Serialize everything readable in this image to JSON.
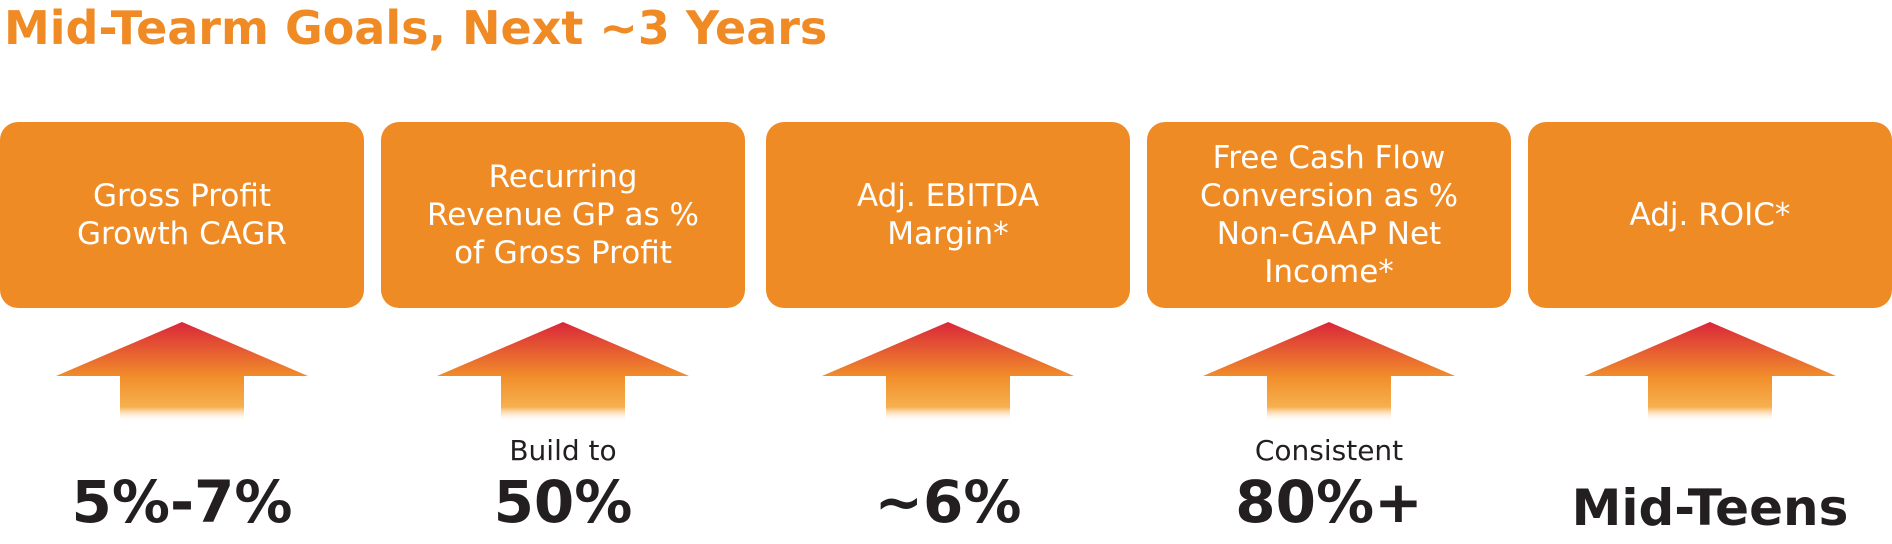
{
  "title": "Mid-Tearm Goals, Next ~3 Years",
  "colors": {
    "accent_orange": "#ef8b25",
    "arrow_top": "#d9263a",
    "arrow_bottom": "#f18e2a",
    "text_dark": "#231f20"
  },
  "goals": [
    {
      "label": "Gross Profit\nGrowth CAGR",
      "prefix": "",
      "value": "5%-7%",
      "icon": "up-arrow-icon"
    },
    {
      "label": "Recurring\nRevenue GP as %\nof Gross Profit",
      "prefix": "Build to",
      "value": "50%",
      "icon": "up-arrow-icon"
    },
    {
      "label": "Adj. EBITDA\nMargin*",
      "prefix": "",
      "value": "~6%",
      "icon": "up-arrow-icon"
    },
    {
      "label": "Free Cash Flow\nConversion as %\nNon-GAAP Net\nIncome*",
      "prefix": "Consistent",
      "value": "80%+",
      "icon": "up-arrow-icon"
    },
    {
      "label": "Adj. ROIC*",
      "prefix": "",
      "value": "Mid-Teens",
      "icon": "up-arrow-icon"
    }
  ]
}
